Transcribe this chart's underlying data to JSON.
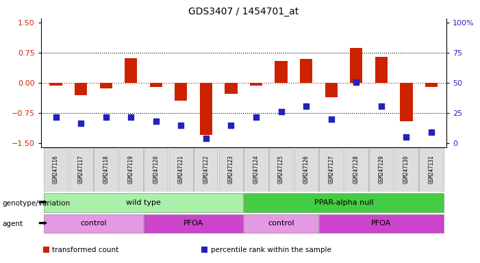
{
  "title": "GDS3407 / 1454701_at",
  "samples": [
    "GSM247116",
    "GSM247117",
    "GSM247118",
    "GSM247119",
    "GSM247120",
    "GSM247121",
    "GSM247122",
    "GSM247123",
    "GSM247124",
    "GSM247125",
    "GSM247126",
    "GSM247127",
    "GSM247128",
    "GSM247129",
    "GSM247130",
    "GSM247131"
  ],
  "bar_values": [
    -0.07,
    -0.3,
    -0.13,
    0.62,
    -0.1,
    -0.45,
    -1.3,
    -0.27,
    -0.07,
    0.55,
    0.6,
    -0.35,
    0.87,
    0.65,
    -0.95,
    -0.1
  ],
  "dot_values": [
    -0.85,
    -1.0,
    -0.85,
    -0.85,
    -0.95,
    -1.05,
    -1.38,
    -1.05,
    -0.85,
    -0.72,
    -0.58,
    -0.9,
    0.02,
    -0.58,
    -1.35,
    -1.22
  ],
  "bar_color": "#cc2200",
  "dot_color": "#2222bb",
  "zero_line_color": "#cc2200",
  "ylim": [
    -1.6,
    1.6
  ],
  "yticks_left": [
    -1.5,
    -0.75,
    0.0,
    0.75,
    1.5
  ],
  "yticks_right_labels": [
    "0",
    "25",
    "50",
    "75",
    "100%"
  ],
  "yticks_right_pos": [
    -1.5,
    -0.75,
    0.0,
    0.75,
    1.5
  ],
  "genotype_groups": [
    {
      "label": "wild type",
      "start": 0,
      "end": 7,
      "color": "#aaf0aa"
    },
    {
      "label": "PPAR-alpha null",
      "start": 8,
      "end": 15,
      "color": "#44cc44"
    }
  ],
  "agent_groups": [
    {
      "label": "control",
      "start": 0,
      "end": 3,
      "color": "#e599e5"
    },
    {
      "label": "PFOA",
      "start": 4,
      "end": 7,
      "color": "#cc44cc"
    },
    {
      "label": "control",
      "start": 8,
      "end": 10,
      "color": "#e599e5"
    },
    {
      "label": "PFOA",
      "start": 11,
      "end": 15,
      "color": "#cc44cc"
    }
  ],
  "legend_items": [
    {
      "label": "transformed count",
      "color": "#cc2200"
    },
    {
      "label": "percentile rank within the sample",
      "color": "#2222bb"
    }
  ],
  "bar_width": 0.5,
  "dot_size": 30,
  "label_row1": "genotype/variation",
  "label_row2": "agent",
  "label_fontsize": 7.5,
  "tick_fontsize": 8,
  "sample_fontsize": 5.5,
  "group_fontsize": 8,
  "title_fontsize": 10
}
